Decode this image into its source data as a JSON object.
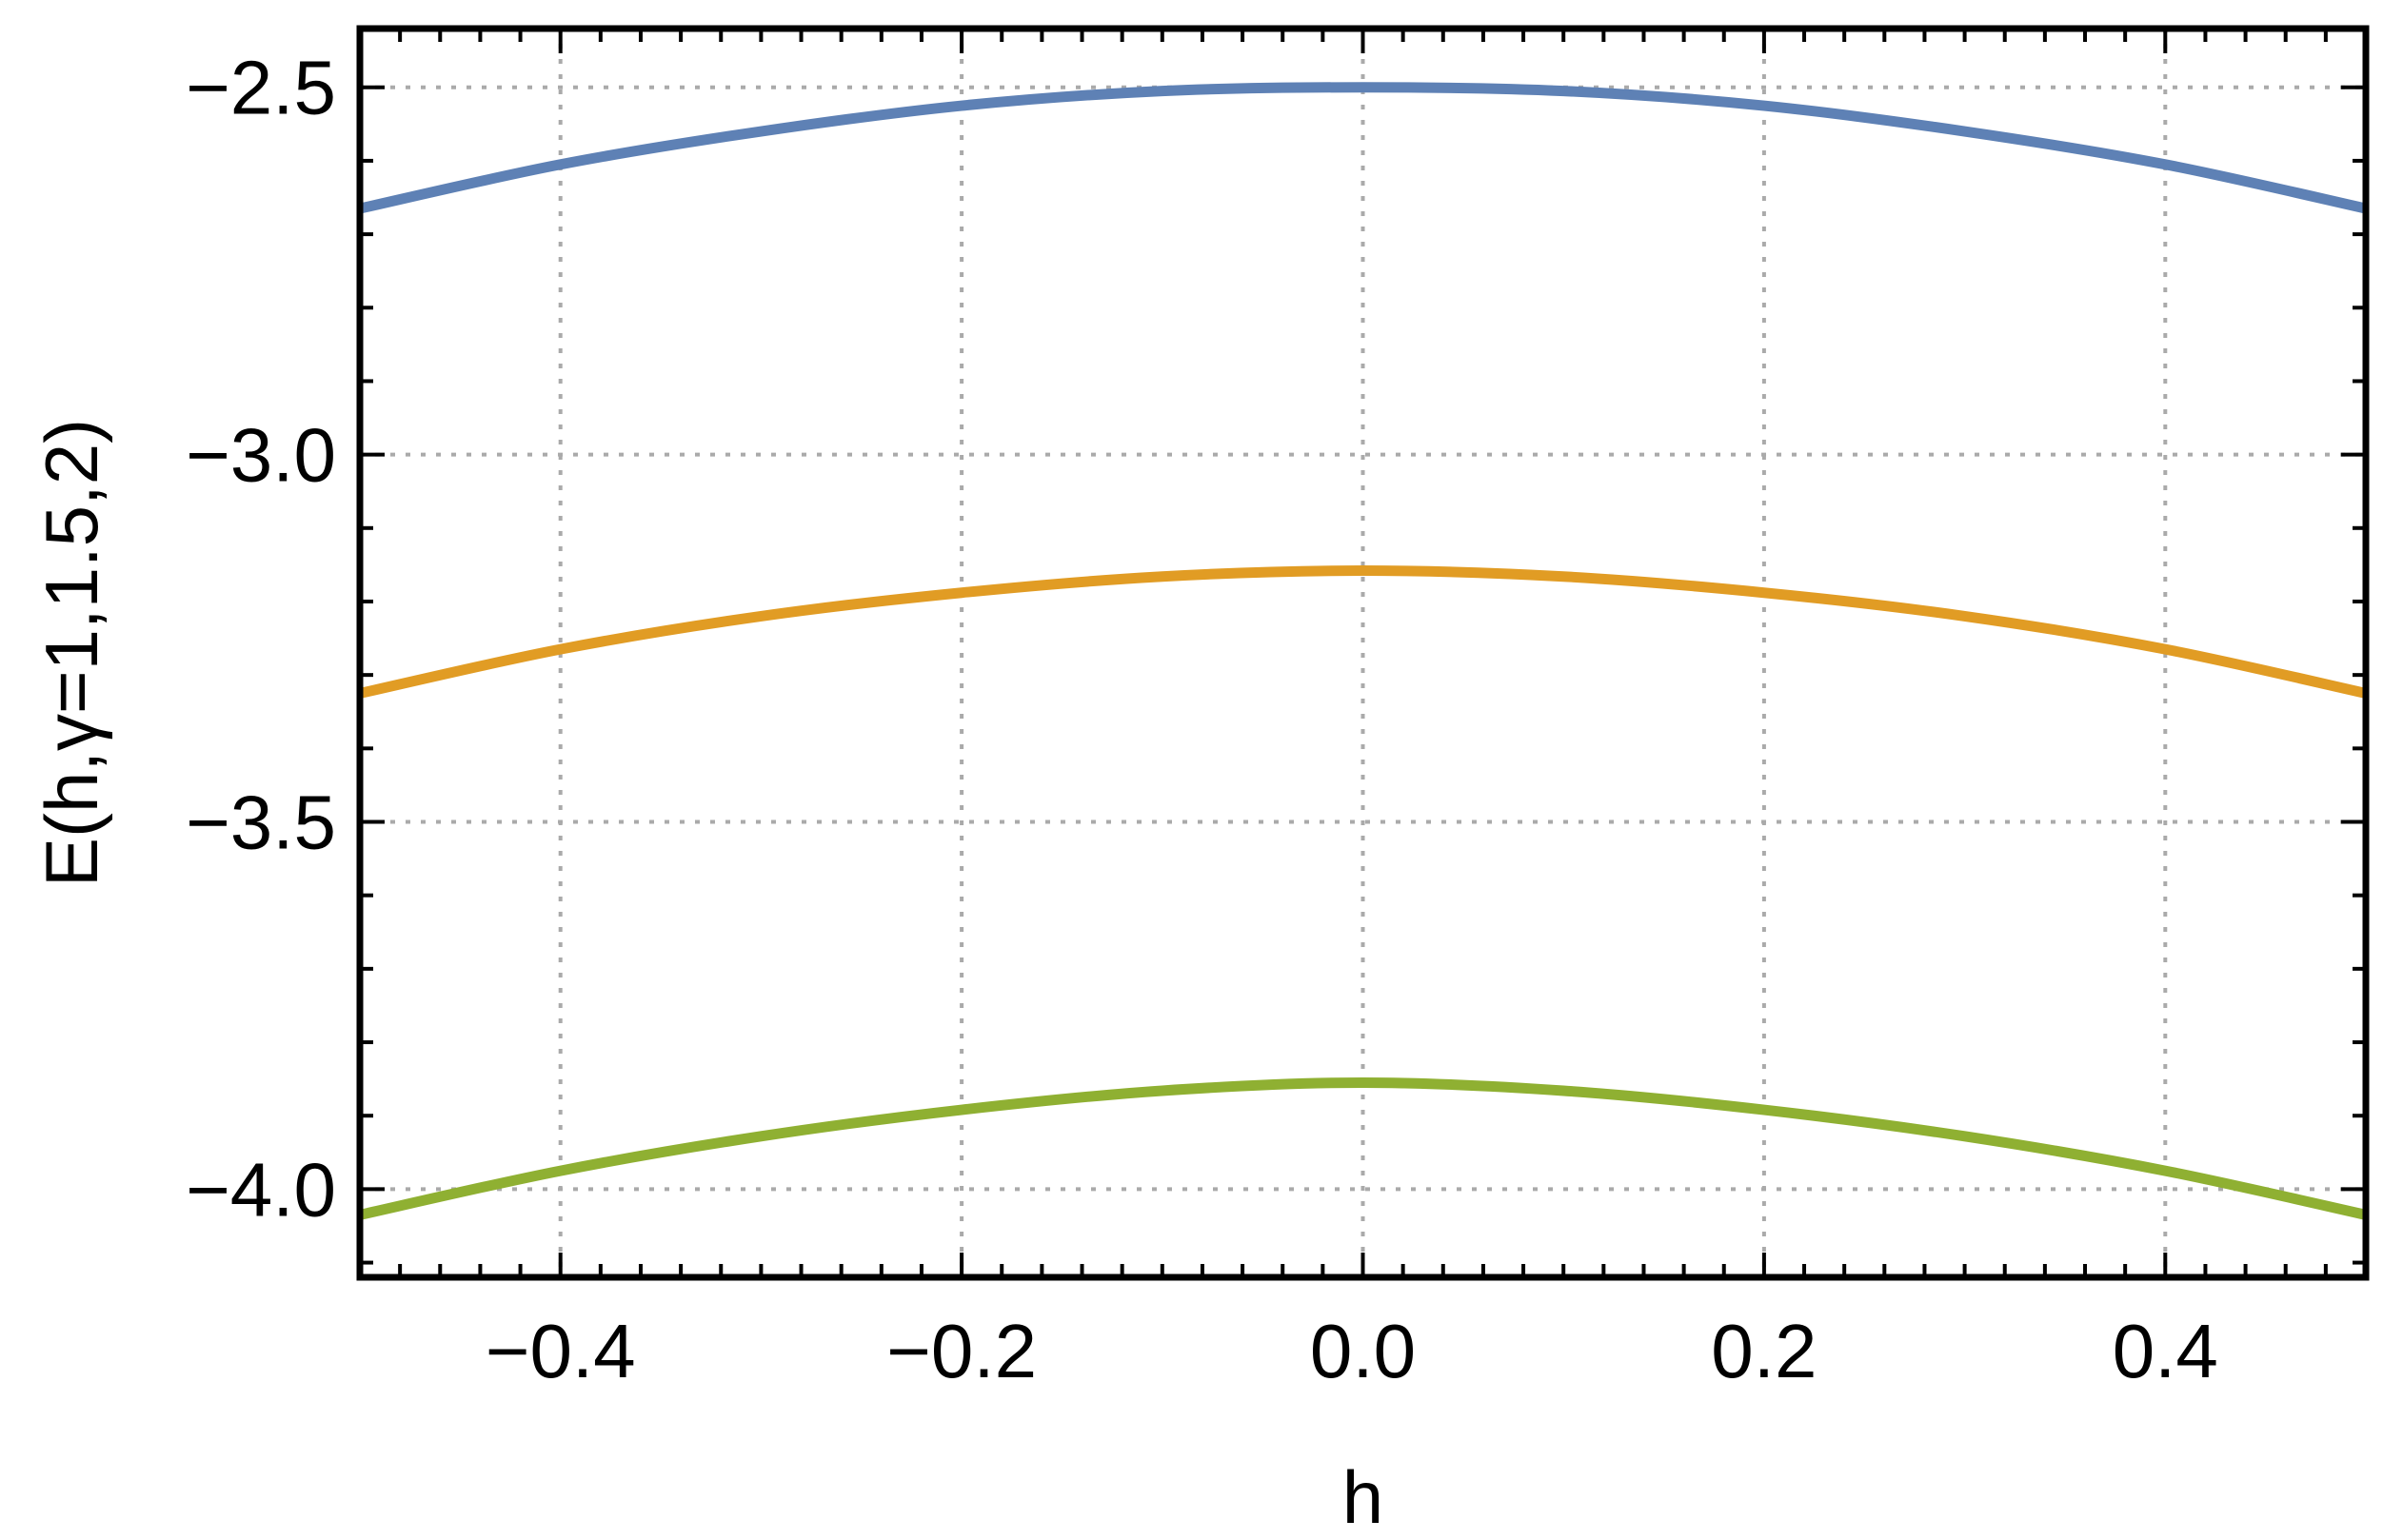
{
  "chart_data": {
    "type": "line",
    "title": "",
    "xlabel": "h",
    "ylabel": "E(h,γ=1,1.5,2)",
    "xlim": [
      -0.5,
      0.5
    ],
    "ylim": [
      -4.12,
      -2.42
    ],
    "grid": true,
    "x_ticks": [
      -0.4,
      -0.2,
      0.0,
      0.2,
      0.4
    ],
    "x_tick_labels": [
      "−0.4",
      "−0.2",
      "0.0",
      "0.2",
      "0.4"
    ],
    "y_ticks": [
      -2.5,
      -3.0,
      -3.5,
      -4.0
    ],
    "y_tick_labels": [
      "−2.5",
      "−3.0",
      "−3.5",
      "−4.0"
    ],
    "series": [
      {
        "color": "#5e81b5",
        "x": [
          -0.5,
          -0.4,
          -0.3,
          -0.2,
          -0.1,
          0.0,
          0.1,
          0.2,
          0.3,
          0.4,
          0.5
        ],
        "y": [
          -2.665,
          -2.605,
          -2.56,
          -2.525,
          -2.505,
          -2.5,
          -2.505,
          -2.525,
          -2.56,
          -2.605,
          -2.665
        ]
      },
      {
        "color": "#e19c24",
        "x": [
          -0.5,
          -0.4,
          -0.3,
          -0.2,
          -0.1,
          0.0,
          0.1,
          0.2,
          0.3,
          0.4,
          0.5
        ],
        "y": [
          -3.325,
          -3.265,
          -3.22,
          -3.188,
          -3.166,
          -3.158,
          -3.166,
          -3.188,
          -3.22,
          -3.265,
          -3.325
        ]
      },
      {
        "color": "#8fb032",
        "x": [
          -0.5,
          -0.4,
          -0.3,
          -0.2,
          -0.1,
          0.0,
          0.1,
          0.2,
          0.3,
          0.4,
          0.5
        ],
        "y": [
          -4.035,
          -3.975,
          -3.928,
          -3.892,
          -3.866,
          -3.855,
          -3.866,
          -3.892,
          -3.928,
          -3.975,
          -4.035
        ]
      }
    ]
  }
}
